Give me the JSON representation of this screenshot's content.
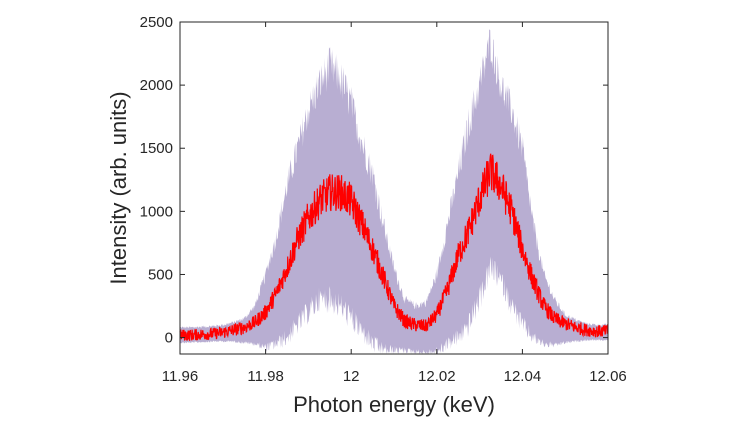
{
  "chart_data": {
    "type": "line",
    "title": "",
    "xlabel": "Photon energy (keV)",
    "ylabel": "Intensity (arb. units)",
    "xlim": [
      11.96,
      12.06
    ],
    "ylim": [
      -130,
      2500
    ],
    "xticks": [
      "11.96",
      "11.98",
      "12",
      "12.02",
      "12.04",
      "12.06"
    ],
    "yticks": [
      "0",
      "500",
      "1000",
      "1500",
      "2000",
      "2500"
    ],
    "grid": false,
    "legend": "none",
    "colors": {
      "mean": "#ff0000",
      "band": "#b8aed2",
      "axis": "#262626"
    },
    "x": [
      11.96,
      11.9625,
      11.965,
      11.9675,
      11.97,
      11.9725,
      11.975,
      11.9775,
      11.98,
      11.9825,
      11.985,
      11.9875,
      11.99,
      11.9925,
      11.995,
      11.9975,
      12.0,
      12.0025,
      12.005,
      12.0075,
      12.01,
      12.0125,
      12.015,
      12.0175,
      12.02,
      12.0225,
      12.025,
      12.0275,
      12.03,
      12.0325,
      12.035,
      12.0375,
      12.04,
      12.0425,
      12.045,
      12.0475,
      12.05,
      12.0525,
      12.055,
      12.0575,
      12.06
    ],
    "series": [
      {
        "role": "mean",
        "values": [
          20,
          20,
          25,
          30,
          40,
          60,
          80,
          120,
          200,
          350,
          550,
          780,
          950,
          1080,
          1150,
          1150,
          1080,
          900,
          700,
          480,
          250,
          130,
          100,
          90,
          180,
          380,
          650,
          850,
          1100,
          1320,
          1200,
          1000,
          700,
          450,
          250,
          150,
          110,
          80,
          60,
          50,
          50
        ]
      },
      {
        "role": "upper",
        "values": [
          80,
          80,
          85,
          90,
          100,
          120,
          150,
          250,
          500,
          800,
          1200,
          1500,
          1800,
          2000,
          2150,
          2050,
          1850,
          1550,
          1300,
          900,
          550,
          300,
          250,
          280,
          500,
          900,
          1300,
          1700,
          2000,
          2350,
          2000,
          1800,
          1500,
          900,
          500,
          300,
          180,
          140,
          110,
          100,
          100
        ]
      },
      {
        "role": "lower",
        "values": [
          -40,
          -40,
          -35,
          -30,
          -30,
          -30,
          -40,
          -50,
          -80,
          -50,
          0,
          100,
          200,
          300,
          300,
          250,
          150,
          50,
          -50,
          -100,
          -100,
          -100,
          -110,
          -120,
          -110,
          -50,
          0,
          100,
          300,
          550,
          450,
          250,
          100,
          0,
          -50,
          -60,
          -40,
          -30,
          -20,
          -20,
          -20
        ]
      }
    ]
  }
}
